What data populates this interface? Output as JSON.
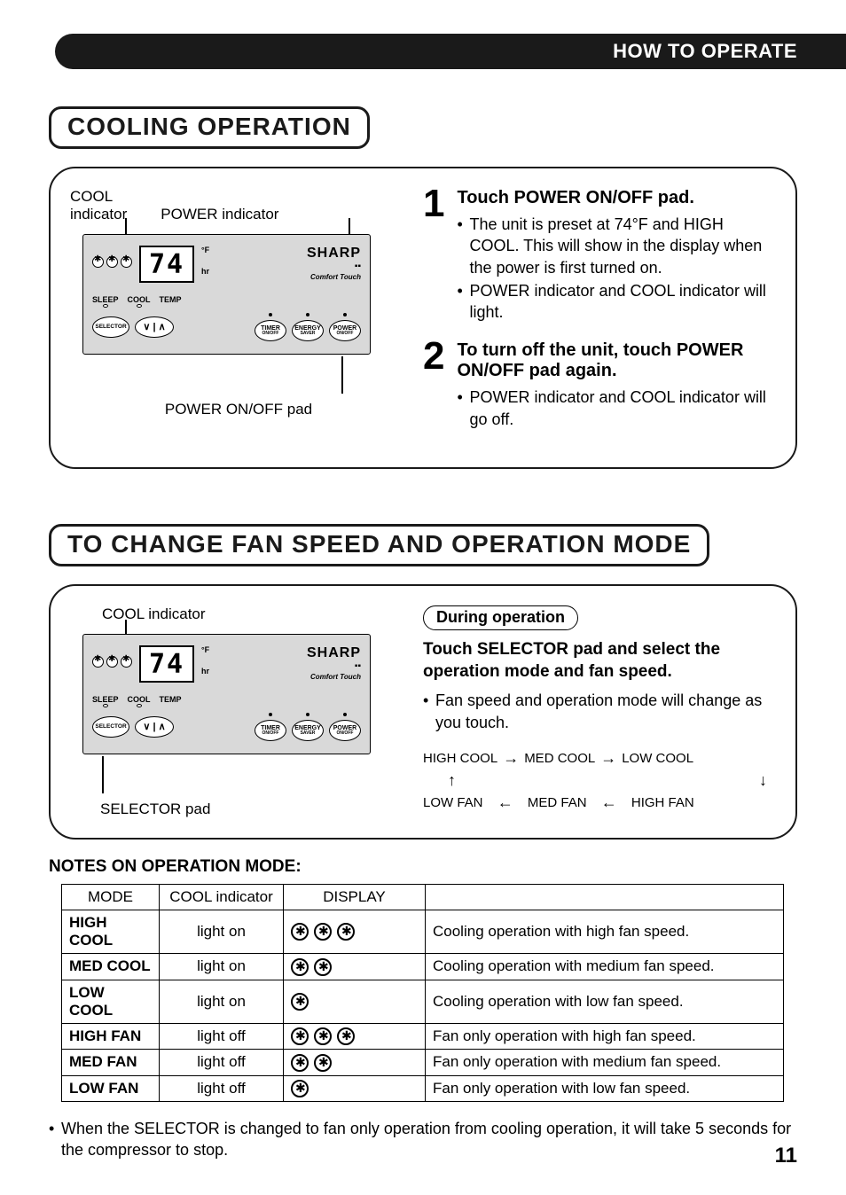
{
  "header": {
    "title": "HOW TO OPERATE"
  },
  "section1": {
    "title": "COOLING OPERATION",
    "diagram": {
      "coolLabel": "COOL\nindicator",
      "powerLabel": "POWER indicator",
      "display": "74",
      "unitF": "°F",
      "unitHr": "hr",
      "brand": "SHARP",
      "comfortTouch": "Comfort Touch",
      "indicators": [
        "SLEEP",
        "COOL",
        "TEMP"
      ],
      "buttons": {
        "selector": "SELECTOR",
        "updown": "∨ | ∧",
        "timer": "TIMER",
        "timerSub": "ON/OFF",
        "energy": "ENERGY",
        "energySub": "SAVER",
        "power": "POWER",
        "powerSub": "ON/OFF"
      },
      "bottomCallout": "POWER ON/OFF pad"
    },
    "steps": [
      {
        "num": "1",
        "title": "Touch POWER ON/OFF pad.",
        "bullets": [
          "The unit is preset at 74°F and HIGH COOL.  This will show in the display when the power is first turned on.",
          "POWER indicator and COOL indicator will light."
        ]
      },
      {
        "num": "2",
        "title": "To turn off the unit, touch POWER ON/OFF pad again.",
        "bullets": [
          "POWER indicator and COOL indicator will go off."
        ]
      }
    ]
  },
  "section2": {
    "title": "TO CHANGE FAN SPEED AND OPERATION MODE",
    "diagram": {
      "coolLabel": "COOL indicator",
      "bottomCallout": "SELECTOR pad"
    },
    "pill": "During operation",
    "instruction": "Touch SELECTOR pad and select the operation mode and fan speed.",
    "bullets": [
      "Fan speed and operation mode will change as you touch."
    ],
    "cycle": {
      "row1": [
        "HIGH COOL",
        "MED COOL",
        "LOW COOL"
      ],
      "row2": [
        "LOW FAN",
        "MED FAN",
        "HIGH FAN"
      ]
    }
  },
  "notes": {
    "heading": "NOTES ON OPERATION MODE:",
    "columns": [
      "MODE",
      "COOL indicator",
      "DISPLAY",
      ""
    ],
    "rows": [
      {
        "mode": "HIGH COOL",
        "cool": "light on",
        "fans": 3,
        "desc": "Cooling operation with high fan speed."
      },
      {
        "mode": "MED COOL",
        "cool": "light on",
        "fans": 2,
        "desc": "Cooling operation with medium fan speed."
      },
      {
        "mode": "LOW COOL",
        "cool": "light on",
        "fans": 1,
        "desc": "Cooling operation with low fan speed."
      },
      {
        "mode": "HIGH FAN",
        "cool": "light off",
        "fans": 3,
        "desc": "Fan only operation with high fan speed."
      },
      {
        "mode": "MED FAN",
        "cool": "light off",
        "fans": 2,
        "desc": "Fan only operation with medium fan speed."
      },
      {
        "mode": "LOW FAN",
        "cool": "light off",
        "fans": 1,
        "desc": "Fan only operation with low fan speed."
      }
    ],
    "footnote": "When the SELECTOR is changed to fan only operation from cooling  operation, it will take 5 seconds for the compressor to stop."
  },
  "pageNumber": "11"
}
